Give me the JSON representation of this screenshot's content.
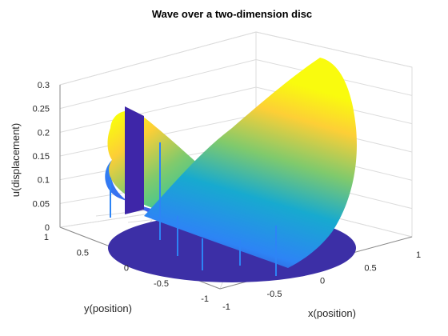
{
  "chart_data": {
    "type": "surface",
    "title": "Wave over a two-dimension disc",
    "xlabel": "x(position)",
    "ylabel": "y(position)",
    "zlabel": "u(displacement)",
    "xlim": [
      -1,
      1
    ],
    "ylim": [
      -1,
      1
    ],
    "zlim": [
      0,
      0.3
    ],
    "x_ticks": [
      -1,
      -0.5,
      0,
      0.5,
      1
    ],
    "x_tick_labels": [
      "-1",
      "-0.5",
      "0",
      "0.5",
      "1"
    ],
    "y_ticks": [
      1,
      0.5,
      0,
      -0.5,
      -1
    ],
    "y_tick_labels": [
      "1",
      "0.5",
      "0",
      "-0.5",
      "-1"
    ],
    "z_ticks": [
      0,
      0.05,
      0.1,
      0.15,
      0.2,
      0.25,
      0.3
    ],
    "z_tick_labels": [
      "0",
      "0.05",
      "0.1",
      "0.15",
      "0.2",
      "0.25",
      "0.3"
    ],
    "grid": true,
    "colormap": "parula",
    "colormap_colors": [
      "#3e26a8",
      "#4653e8",
      "#2d84f5",
      "#17aacf",
      "#2cc5a0",
      "#80ca6c",
      "#d3bb46",
      "#fdcf36",
      "#f9fb0e"
    ],
    "disc_color": "#3c2fa6",
    "surface_description": "Displacement over the unit disc is zero except on two lobes near x = 0.5 to 1 and near y = 0.8 (peaks about 0.3 and 0.23)"
  }
}
